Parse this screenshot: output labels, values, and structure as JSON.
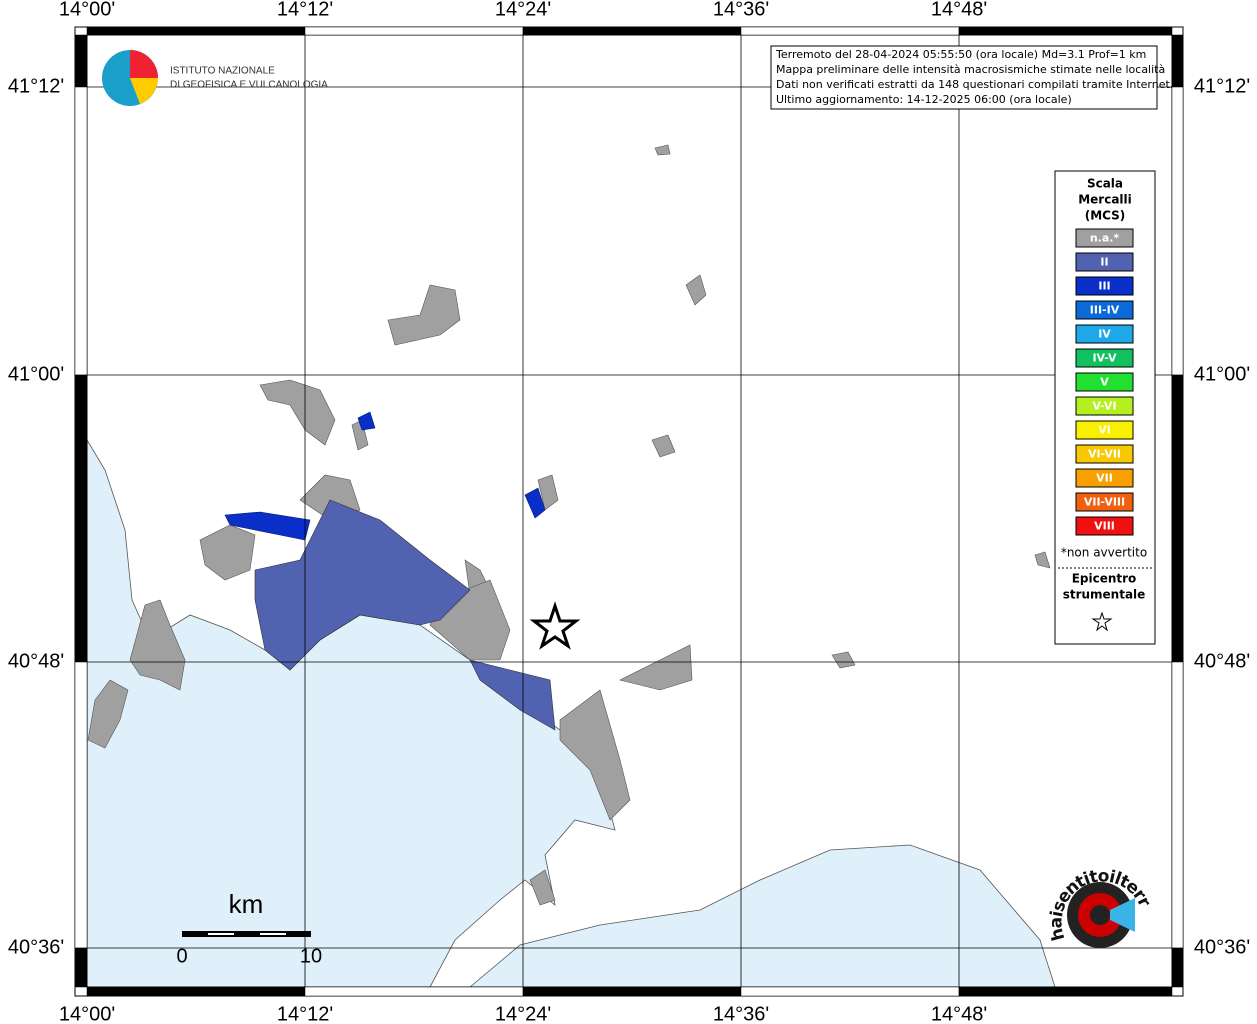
{
  "longitude_labels": [
    "14°00'",
    "14°12'",
    "14°24'",
    "14°36'",
    "14°48'"
  ],
  "latitude_labels": [
    "41°12'",
    "41°00'",
    "40°48'",
    "40°36'"
  ],
  "logo": {
    "line1": "ISTITUTO NAZIONALE",
    "line2": "DI GEOFISICA E VULCANOLOGIA"
  },
  "info": [
    "Terremoto del 28-04-2024 05:55:50 (ora locale) Md=3.1 Prof=1 km",
    "Mappa preliminare delle intensità macrosismiche stimate nelle località",
    "Dati non verificati estratti da 148 questionari compilati tramite Internet.",
    "Ultimo aggiornamento: 14-12-2025 06:00 (ora locale)"
  ],
  "legend": {
    "title": [
      "Scala",
      "Mercalli",
      "(MCS)"
    ],
    "items": [
      {
        "label": "n.a.*",
        "color": "#a0a0a0"
      },
      {
        "label": "II",
        "color": "#5062b0"
      },
      {
        "label": "III",
        "color": "#0a2fc8"
      },
      {
        "label": "III-IV",
        "color": "#0a6ad8"
      },
      {
        "label": "IV",
        "color": "#1ea8e8"
      },
      {
        "label": "IV-V",
        "color": "#12c060"
      },
      {
        "label": "V",
        "color": "#22e030"
      },
      {
        "label": "V-VI",
        "color": "#b4f020"
      },
      {
        "label": "VI",
        "color": "#f8f000"
      },
      {
        "label": "VI-VII",
        "color": "#f8c800"
      },
      {
        "label": "VII",
        "color": "#f8a000"
      },
      {
        "label": "VII-VIII",
        "color": "#f06010"
      },
      {
        "label": "VIII",
        "color": "#f01010"
      }
    ],
    "note": "*non avvertito",
    "epicentre": [
      "Epicentro",
      "strumentale"
    ]
  },
  "scale": {
    "unit": "km",
    "labels": [
      "0",
      "10"
    ]
  },
  "watermark": "haisentitoilterremoto.it"
}
